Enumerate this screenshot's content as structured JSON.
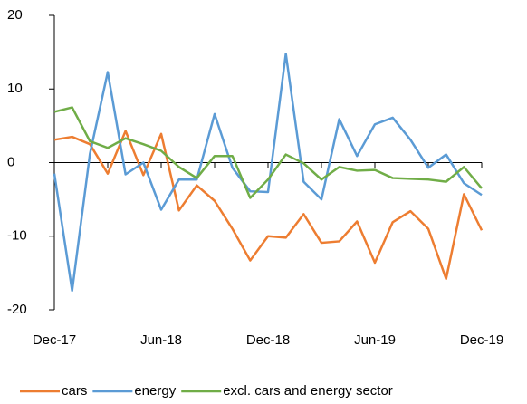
{
  "chart_data": {
    "type": "line",
    "categories": [
      "Dec-17",
      null,
      null,
      null,
      null,
      null,
      "Jun-18",
      null,
      null,
      null,
      null,
      null,
      "Dec-18",
      null,
      null,
      null,
      null,
      null,
      "Jun-19",
      null,
      null,
      null,
      null,
      null,
      "Dec-19"
    ],
    "series": [
      {
        "name": "cars",
        "color": "#ed7d31",
        "values": [
          3.1,
          3.5,
          2.5,
          -1.5,
          4.3,
          -1.7,
          3.9,
          -6.5,
          -3.1,
          -5.2,
          -9,
          -13.3,
          -10,
          -10.2,
          -7,
          -10.9,
          -10.7,
          -8,
          -13.6,
          -8.1,
          -6.6,
          -9,
          -15.8,
          -4.3,
          -9.2
        ]
      },
      {
        "name": "energy",
        "color": "#5b9bd5",
        "values": [
          -1.5,
          -17.4,
          1.2,
          12.3,
          -1.6,
          0,
          -6.4,
          -2.3,
          -2.3,
          6.6,
          -0.7,
          -3.9,
          -4,
          14.8,
          -2.6,
          -5,
          5.9,
          0.9,
          5.2,
          6.1,
          3.1,
          -0.7,
          1.1,
          -2.8,
          -4.4
        ]
      },
      {
        "name": "excl. cars and energy sector",
        "color": "#70ad47",
        "values": [
          6.9,
          7.5,
          2.9,
          2,
          3.3,
          2.5,
          1.6,
          -0.6,
          -2.1,
          0.9,
          0.9,
          -4.8,
          -2.3,
          1.1,
          -0.1,
          -2.3,
          -0.6,
          -1.1,
          -1,
          -2.1,
          -2.2,
          -2.3,
          -2.6,
          -0.6,
          -3.5
        ]
      }
    ],
    "ylim": [
      -20,
      20
    ],
    "yticks": [
      20,
      10,
      0,
      -10,
      -20
    ]
  }
}
